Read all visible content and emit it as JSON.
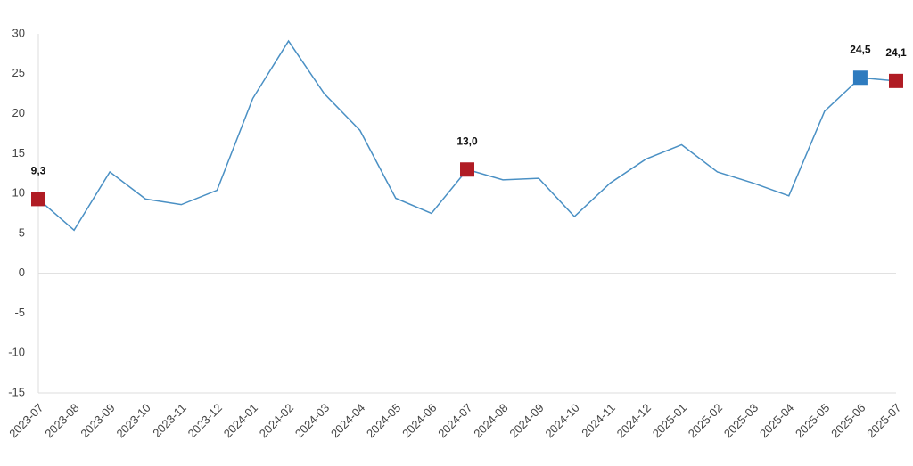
{
  "chart_data": {
    "type": "line",
    "categories": [
      "2023-07",
      "2023-08",
      "2023-09",
      "2023-10",
      "2023-11",
      "2023-12",
      "2024-01",
      "2024-02",
      "2024-03",
      "2024-04",
      "2024-05",
      "2024-06",
      "2024-07",
      "2024-08",
      "2024-09",
      "2024-10",
      "2024-11",
      "2024-12",
      "2025-01",
      "2025-02",
      "2025-03",
      "2025-04",
      "2025-05",
      "2025-06",
      "2025-07"
    ],
    "series": [
      {
        "color": "#4a90c4",
        "values": [
          9.3,
          5.4,
          12.7,
          9.3,
          8.6,
          10.4,
          21.9,
          29.1,
          22.5,
          17.9,
          9.4,
          7.5,
          13.0,
          11.7,
          11.9,
          7.1,
          11.3,
          14.3,
          16.1,
          12.7,
          11.3,
          9.7,
          20.3,
          24.5,
          24.1
        ],
        "value_labels": [
          "9,3",
          null,
          null,
          null,
          null,
          null,
          null,
          null,
          null,
          null,
          null,
          null,
          "13,0",
          null,
          null,
          null,
          null,
          null,
          null,
          null,
          null,
          null,
          null,
          "24,5",
          "24,1"
        ],
        "marker_colors": [
          "#b01c24",
          null,
          null,
          null,
          null,
          null,
          null,
          null,
          null,
          null,
          null,
          null,
          "#b01c24",
          null,
          null,
          null,
          null,
          null,
          null,
          null,
          null,
          null,
          null,
          "#2e7bbf",
          "#b01c24"
        ]
      }
    ],
    "ylim": [
      -15,
      30
    ],
    "yticks": [
      -15,
      -10,
      -5,
      0,
      5,
      10,
      15,
      20,
      25,
      30
    ],
    "zero_line": true
  }
}
